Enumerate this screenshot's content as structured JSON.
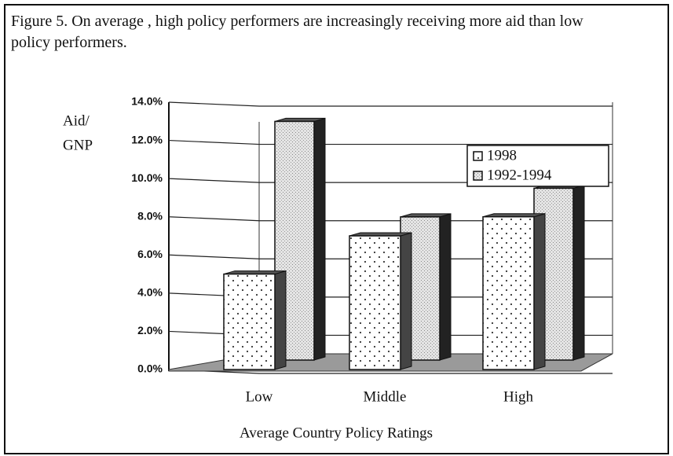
{
  "chart_data": {
    "type": "bar3d",
    "title": "Figure 5. On average , high policy performers are increasingly receiving more aid than low policy performers.",
    "y_label": [
      "Aid/",
      "GNP"
    ],
    "x_label": "Average Country Policy Ratings",
    "categories": [
      "Low",
      "Middle",
      "High"
    ],
    "series": [
      {
        "name": "1998",
        "color": "#ffffff",
        "values": [
          5.0,
          7.0,
          8.0
        ]
      },
      {
        "name": "1992-1994",
        "color": "#d9d9d9",
        "values": [
          12.5,
          7.5,
          9.0
        ]
      }
    ],
    "ylim": [
      0,
      14
    ],
    "yticks": [
      {
        "value": 0,
        "label": "0.0%"
      },
      {
        "value": 2,
        "label": "2.0%"
      },
      {
        "value": 4,
        "label": "4.0%"
      },
      {
        "value": 6,
        "label": "6.0%"
      },
      {
        "value": 8,
        "label": "8.0%"
      },
      {
        "value": 10,
        "label": "10.0%"
      },
      {
        "value": 12,
        "label": "12.0%"
      },
      {
        "value": 14,
        "label": "14.0%"
      }
    ],
    "grid": true,
    "legend": "upper right"
  }
}
